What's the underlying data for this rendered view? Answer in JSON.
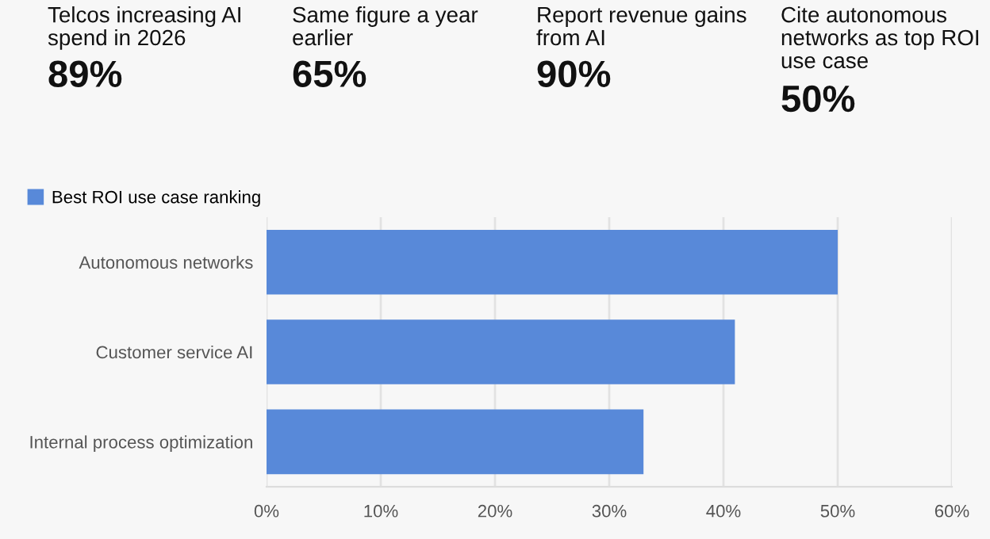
{
  "chart_data": [
    {
      "type": "other",
      "annotations": [
        "Telcos increasing AI spend in 2026",
        "89%",
        "Same figure a year earlier",
        "65%",
        "Report revenue gains from AI",
        "90%",
        "Cite autonomous networks as top ROI use case",
        "50%"
      ]
    },
    {
      "type": "bar",
      "orientation": "horizontal",
      "categories": [
        "Autonomous networks",
        "Customer service AI",
        "Internal process optimization"
      ],
      "series": [
        {
          "name": "Best ROI use case ranking",
          "color": "#5889d9",
          "values": [
            50,
            41,
            33
          ]
        }
      ],
      "xlim": [
        0,
        60
      ],
      "xticks": [
        {
          "value": 0,
          "label": "0%"
        },
        {
          "value": 10,
          "label": "10%"
        },
        {
          "value": 20,
          "label": "20%"
        },
        {
          "value": 30,
          "label": "30%"
        },
        {
          "value": 40,
          "label": "40%"
        },
        {
          "value": 50,
          "label": "50%"
        },
        {
          "value": 60,
          "label": "60%"
        }
      ],
      "grid": "x",
      "legend": "top left"
    }
  ]
}
